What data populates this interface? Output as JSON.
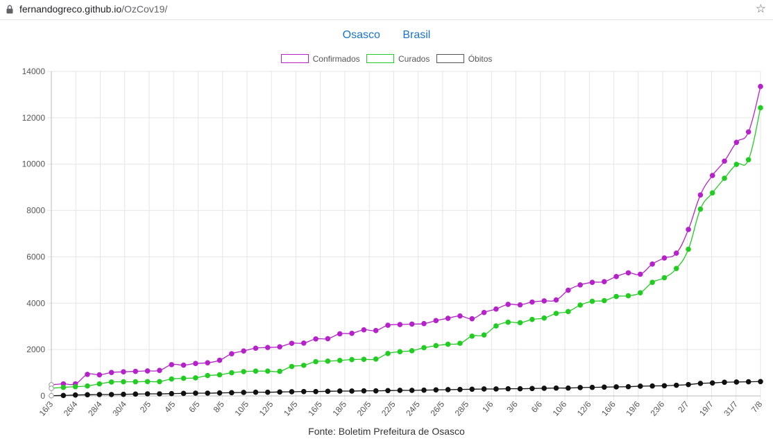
{
  "browser": {
    "url_host": "fernandogreco.github.io",
    "url_path": "/OzCov19/"
  },
  "nav": {
    "links": [
      "Osasco",
      "Brasil"
    ]
  },
  "colors": {
    "confirmados": "#b522c9",
    "curados": "#22cc22",
    "obitos": "#111111",
    "grid": "#e5e5e5",
    "link": "#1a73c8"
  },
  "chart_data": {
    "type": "line",
    "ylim": [
      0,
      14000
    ],
    "yticks": [
      0,
      2000,
      4000,
      6000,
      8000,
      10000,
      12000,
      14000
    ],
    "grid": true,
    "legend_placement": "top-center",
    "xtick_labels": [
      "16/3",
      "26/4",
      "28/4",
      "30/4",
      "2/5",
      "4/5",
      "6/5",
      "8/5",
      "10/5",
      "12/5",
      "14/5",
      "16/5",
      "18/5",
      "20/5",
      "22/5",
      "24/5",
      "26/5",
      "28/5",
      "1/6",
      "3/6",
      "6/6",
      "10/6",
      "12/6",
      "16/6",
      "19/6",
      "23/6",
      "2/7",
      "19/7",
      "31/7",
      "7/8"
    ],
    "series": [
      {
        "name": "Confirmados",
        "values": [
          480,
          520,
          520,
          930,
          910,
          1010,
          1040,
          1060,
          1080,
          1100,
          1350,
          1330,
          1400,
          1430,
          1540,
          1820,
          1940,
          2060,
          2090,
          2120,
          2270,
          2280,
          2460,
          2470,
          2680,
          2700,
          2850,
          2820,
          3050,
          3080,
          3100,
          3120,
          3250,
          3350,
          3450,
          3330,
          3600,
          3750,
          3950,
          3930,
          4050,
          4100,
          4140,
          4560,
          4790,
          4900,
          4930,
          5150,
          5310,
          5250,
          5690,
          5950,
          6160,
          7180,
          8670,
          9510,
          10130,
          10940,
          11390,
          13350
        ]
      },
      {
        "name": "Curados",
        "values": [
          330,
          370,
          400,
          430,
          520,
          600,
          610,
          610,
          620,
          620,
          730,
          760,
          780,
          880,
          910,
          1000,
          1050,
          1070,
          1070,
          1060,
          1270,
          1320,
          1480,
          1500,
          1530,
          1570,
          1580,
          1590,
          1830,
          1910,
          1950,
          2080,
          2170,
          2230,
          2270,
          2580,
          2630,
          3020,
          3180,
          3160,
          3300,
          3360,
          3560,
          3640,
          3920,
          4080,
          4110,
          4290,
          4320,
          4450,
          4900,
          5100,
          5500,
          6330,
          8060,
          8760,
          9390,
          9990,
          10190,
          12430
        ]
      },
      {
        "name": "Óbitos",
        "values": [
          10,
          20,
          40,
          50,
          60,
          60,
          70,
          80,
          90,
          90,
          100,
          110,
          120,
          120,
          130,
          140,
          150,
          160,
          160,
          170,
          180,
          190,
          190,
          200,
          210,
          210,
          220,
          220,
          230,
          240,
          240,
          250,
          260,
          270,
          280,
          290,
          300,
          300,
          310,
          310,
          320,
          330,
          340,
          340,
          360,
          370,
          380,
          390,
          400,
          420,
          430,
          440,
          460,
          490,
          540,
          560,
          590,
          600,
          610,
          620
        ]
      }
    ]
  },
  "source": "Fonte: Boletim Prefeitura de Osasco"
}
